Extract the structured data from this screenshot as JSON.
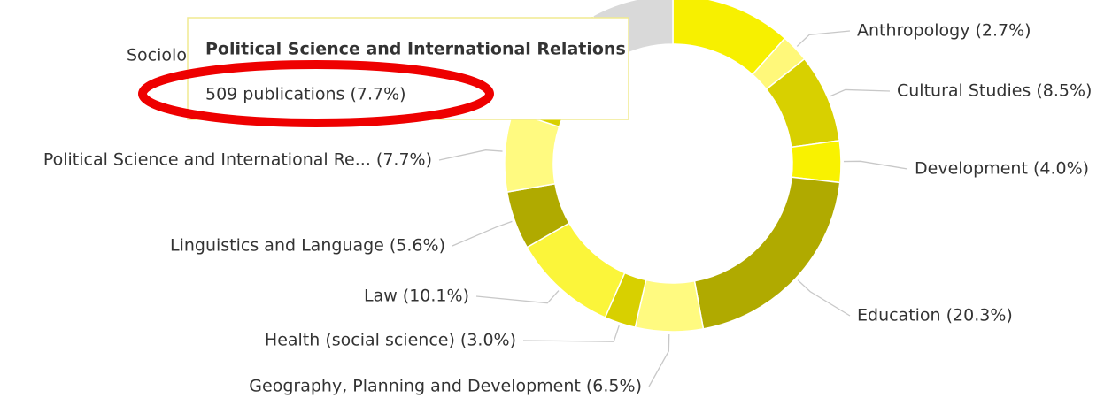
{
  "chart_data": {
    "type": "donut",
    "categories": [
      null,
      "Anthropology (2.7%)",
      "Cultural Studies (8.5%)",
      "Development (4.0%)",
      "Education (20.3%)",
      "Geography, Planning and Development (6.5%)",
      "Health (social science) (3.0%)",
      "Law (10.1%)",
      "Linguistics and Language (5.6%)",
      "Political Science and International Re... (7.7%)",
      "Sociolo",
      null
    ],
    "values": [
      11.6,
      2.7,
      8.5,
      4.0,
      20.3,
      6.5,
      3.0,
      10.1,
      5.6,
      7.7,
      12.1,
      7.9
    ],
    "colors": [
      "#f7f000",
      "#fff87a",
      "#d8d000",
      "#f9f200",
      "#b0aa00",
      "#fffa80",
      "#d8d000",
      "#fbf53a",
      "#b0aa00",
      "#fffa80",
      "#d8d000",
      "#d9d9d9"
    ],
    "tooltip": {
      "title": "Political Science and International Relations",
      "text": "509 publications (7.7%)"
    }
  }
}
